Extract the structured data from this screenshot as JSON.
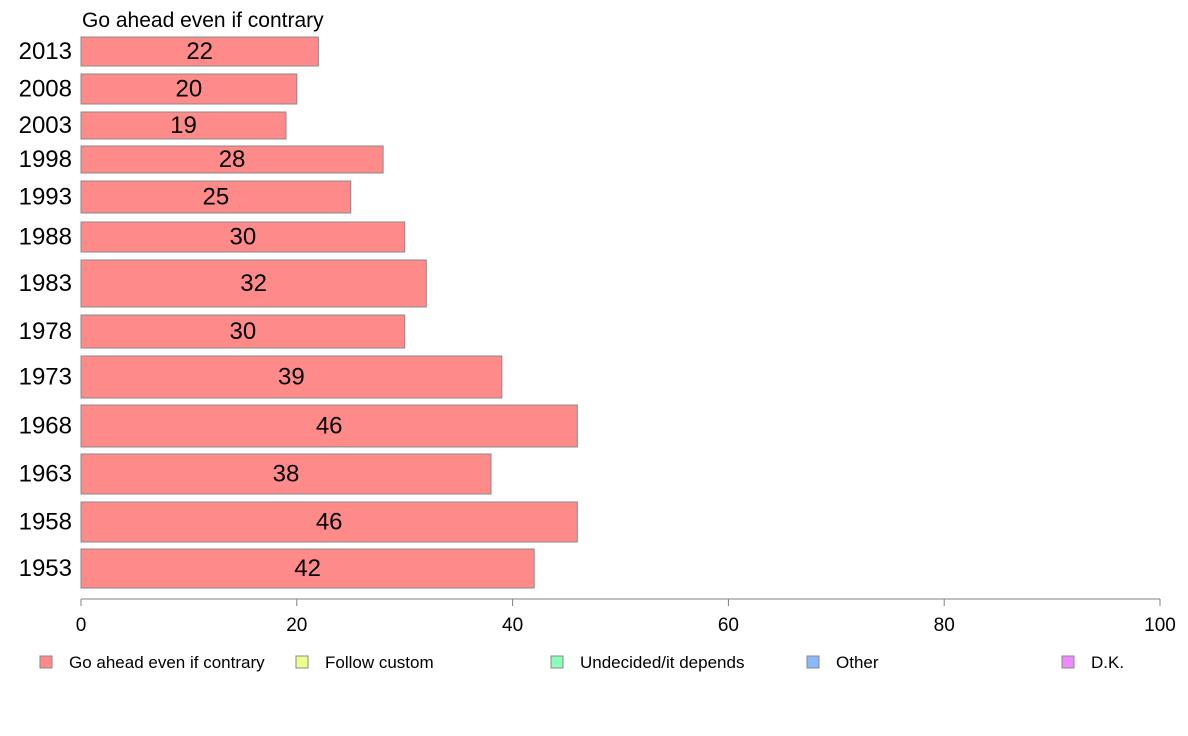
{
  "chart_data": {
    "type": "bar",
    "orientation": "horizontal",
    "title": "Go ahead even if contrary",
    "categories": [
      "2013",
      "2008",
      "2003",
      "1998",
      "1993",
      "1988",
      "1983",
      "1978",
      "1973",
      "1968",
      "1963",
      "1958",
      "1953"
    ],
    "series": [
      {
        "name": "Go ahead even if contrary",
        "color": "#ff8a8a",
        "values": [
          22,
          20,
          19,
          28,
          25,
          30,
          32,
          30,
          39,
          46,
          38,
          46,
          42
        ],
        "labels": [
          "22",
          "20",
          "19",
          "28",
          "25",
          "30",
          "32",
          "30",
          "39",
          "46",
          "38",
          "46",
          "42"
        ]
      }
    ],
    "xlim": [
      0,
      100
    ],
    "xticks": [
      0,
      20,
      40,
      60,
      80,
      100
    ],
    "xtick_labels": [
      "0",
      "20",
      "40",
      "60",
      "80",
      "100"
    ],
    "grid": false,
    "legend_position": "bottom",
    "legend": [
      {
        "label": "Go ahead even if contrary",
        "color": "#ff8a8a"
      },
      {
        "label": "Follow custom",
        "color": "#eeff8a"
      },
      {
        "label": "Undecided/it depends",
        "color": "#8affb8"
      },
      {
        "label": "Other",
        "color": "#8ab8ff"
      },
      {
        "label": "D.K.",
        "color": "#ee8aff"
      }
    ]
  }
}
